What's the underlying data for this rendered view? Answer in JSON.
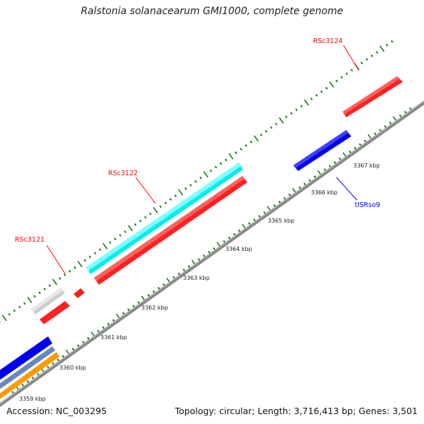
{
  "title": "Ralstonia solanacearum GMI1000, complete genome",
  "footer": {
    "accession": "Accession: NC_003295",
    "summary": "Topology: circular; Length: 3,716,413 bp; Genes: 3,501"
  },
  "tick_labels": [
    "3359 kbp",
    "3360 kbp",
    "3361 kbp",
    "3362 kbp",
    "3363 kbp",
    "3364 kbp",
    "3365 kbp",
    "3366 kbp",
    "3367 kbp"
  ],
  "feature_labels": [
    {
      "text": "RSc3124",
      "color": "#ff0000"
    },
    {
      "text": "RSc3122",
      "color": "#ff0000"
    },
    {
      "text": "RSc3121",
      "color": "#ff0000"
    },
    {
      "text": "tISRso9",
      "color": "#0000ff"
    }
  ],
  "feature_colors": {
    "cds": "#ff0000",
    "cds_alt": "#00ffff",
    "mobile_element": "#0000ff",
    "rna": "#c8c8c8",
    "misc_orange": "#ff9900",
    "misc_steel": "#6688bb",
    "tick": "#1a7a1a",
    "backbone": "#888888"
  }
}
